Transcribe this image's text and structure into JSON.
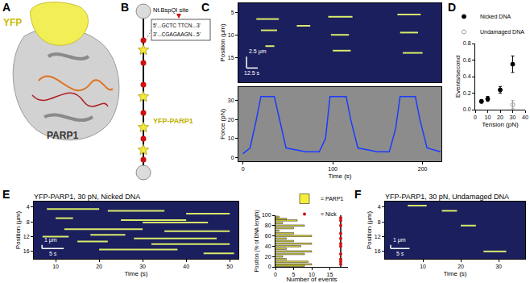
{
  "panel_labels": [
    "A",
    "B",
    "C",
    "D",
    "E",
    "F"
  ],
  "panel_a": {
    "texts": [
      "YFP",
      "PARP1"
    ]
  },
  "panel_b": {
    "site_label": "Nt.BspQI site",
    "sequence": [
      "5'...GCTC TTCN...3'",
      "3'...CGAGAAGN...5'"
    ],
    "protein_label": "YFP-PARP1"
  },
  "chart_data": [
    {
      "type": "kymograph",
      "ylabel": "Position (μm)",
      "xlim": [
        -5,
        221
      ],
      "ylim": [
        20.5,
        3
      ],
      "yticks": [
        5,
        10,
        15
      ],
      "tick_labels": "y",
      "color": "#d9ec6a",
      "tracks": [
        {
          "t": [
            15,
            40
          ],
          "position": 6.5
        },
        {
          "t": [
            20,
            38
          ],
          "position": 9
        },
        {
          "t": [
            25,
            35
          ],
          "position": 12.5
        },
        {
          "t": [
            60,
            75
          ],
          "position": 8
        },
        {
          "t": [
            95,
            122
          ],
          "position": 6
        },
        {
          "t": [
            98,
            118
          ],
          "position": 10
        },
        {
          "t": [
            100,
            120
          ],
          "position": 13.5
        },
        {
          "t": [
            172,
            198
          ],
          "position": 5.5
        },
        {
          "t": [
            175,
            195
          ],
          "position": 9.5
        },
        {
          "t": [
            178,
            200
          ],
          "position": 14
        }
      ],
      "scale_bar": {
        "x": 12.5,
        "x_label": "12.5 s",
        "y": 2.5,
        "y_label": "2.5 μm"
      }
    },
    {
      "type": "line",
      "xlabel": "Time (s)",
      "ylabel": "Force (pN)",
      "color": "#1a3cff",
      "x": [
        0,
        8,
        15,
        20,
        35,
        40,
        48,
        70,
        85,
        92,
        97,
        115,
        120,
        128,
        150,
        163,
        170,
        175,
        192,
        197,
        205,
        220
      ],
      "values": [
        2,
        5,
        20,
        32,
        32,
        22,
        5,
        3,
        3,
        10,
        32,
        32,
        20,
        5,
        3,
        3,
        15,
        32,
        32,
        20,
        5,
        3
      ],
      "xlim": [
        -5,
        221
      ],
      "xticks": [
        0,
        100,
        200
      ],
      "ylim": [
        -2,
        37
      ],
      "yticks": [
        0,
        10,
        20,
        30
      ]
    },
    {
      "type": "scatter",
      "xlabel": "Tension (pN)",
      "ylabel": "Events/second",
      "xlim": [
        0,
        40
      ],
      "xticks": [
        0,
        10,
        20,
        30,
        40
      ],
      "ylim": [
        0,
        0.8
      ],
      "yticks": [
        {
          "value": 0,
          "label": "0.0"
        },
        0.2,
        0.4,
        0.6,
        0.8
      ],
      "legend": "top right",
      "series": [
        {
          "name": "Nicked DNA",
          "color": "#000000",
          "marker": "circle",
          "x": [
            5,
            10,
            20,
            30
          ],
          "values": [
            0.1,
            0.13,
            0.24,
            0.55
          ],
          "errors": [
            0.02,
            0.03,
            0.04,
            0.1
          ]
        },
        {
          "name": "Undamaged DNA",
          "color": "#999999",
          "marker": "circle-open",
          "x": [
            30
          ],
          "values": [
            0.06
          ],
          "errors": [
            0.05
          ]
        }
      ]
    },
    {
      "type": "kymograph",
      "title": "YFP-PARP1, 30 pN, Nicked DNA",
      "xlabel": "Time (s)",
      "ylabel": "Position (μm)",
      "color": "#d9ec6a",
      "xlim": [
        5,
        52
      ],
      "xticks": [
        10,
        20,
        30,
        40,
        50
      ],
      "ylim": [
        18,
        2.5
      ],
      "yticks": [
        4,
        8,
        12,
        16
      ],
      "tracks": [
        {
          "t": [
            8,
            20
          ],
          "position": 4.5
        },
        {
          "t": [
            22,
            35
          ],
          "position": 5
        },
        {
          "t": [
            40,
            50
          ],
          "position": 5.8
        },
        {
          "t": [
            10,
            14
          ],
          "position": 7
        },
        {
          "t": [
            25,
            40
          ],
          "position": 7.5
        },
        {
          "t": [
            30,
            45
          ],
          "position": 8.2
        },
        {
          "t": [
            12,
            30
          ],
          "position": 10
        },
        {
          "t": [
            35,
            50
          ],
          "position": 10.5
        },
        {
          "t": [
            18,
            26
          ],
          "position": 11.5
        },
        {
          "t": [
            7,
            13
          ],
          "position": 12
        },
        {
          "t": [
            28,
            47
          ],
          "position": 12.5
        },
        {
          "t": [
            15,
            22
          ],
          "position": 13.3
        },
        {
          "t": [
            32,
            50
          ],
          "position": 14
        },
        {
          "t": [
            20,
            38
          ],
          "position": 15.5
        },
        {
          "t": [
            44,
            51
          ],
          "position": 16.5
        }
      ],
      "scale_bar": {
        "x": 5,
        "x_label": "5 s",
        "y": 1,
        "y_label": "1 μm"
      }
    },
    {
      "type": "bar",
      "orientation": "horizontal",
      "xlabel": "Number of events",
      "ylabel": "Position (% of DNA length)",
      "xlim": [
        0,
        20
      ],
      "xticks": [
        0,
        5,
        10,
        15
      ],
      "ylim": [
        0,
        100
      ],
      "yticks": [
        0,
        20,
        40,
        60,
        80,
        100
      ],
      "legend": "top right",
      "categories": [
        2,
        5,
        10,
        15,
        20,
        25,
        30,
        35,
        40,
        45,
        50,
        55,
        60,
        65,
        70,
        75,
        80,
        85,
        90,
        93,
        97
      ],
      "series": [
        {
          "name": "= PARP1",
          "type": "bar",
          "color": "#f5ee3a",
          "values": [
            8,
            10,
            9,
            3,
            2,
            8,
            10,
            3,
            7,
            10,
            5,
            3,
            10,
            5,
            1,
            5,
            8,
            2,
            6,
            3,
            1
          ]
        },
        {
          "name": "= Nick",
          "type": "scatter",
          "color": "#d01010",
          "marker": "circle",
          "positions": [
            5,
            10,
            15,
            25,
            40,
            45,
            55,
            65,
            80,
            90,
            95
          ]
        }
      ]
    },
    {
      "type": "kymograph",
      "title": "YFP-PARP1, 30 pN, Undamaged DNA",
      "xlabel": "Time (s)",
      "ylabel": "Position (μm)",
      "color": "#d9ec6a",
      "xlim": [
        0,
        37
      ],
      "xticks": [
        10,
        20,
        30
      ],
      "ylim": [
        18,
        2.5
      ],
      "yticks": [
        4,
        8,
        12,
        16
      ],
      "tracks": [
        {
          "t": [
            6,
            11
          ],
          "position": 3.6
        },
        {
          "t": [
            15,
            19
          ],
          "position": 5
        },
        {
          "t": [
            20,
            24
          ],
          "position": 9
        },
        {
          "t": [
            26,
            32
          ],
          "position": 16
        }
      ],
      "scale_bar": {
        "x": 5,
        "x_label": "5 s",
        "y": 1,
        "y_label": "1 μm"
      }
    }
  ]
}
